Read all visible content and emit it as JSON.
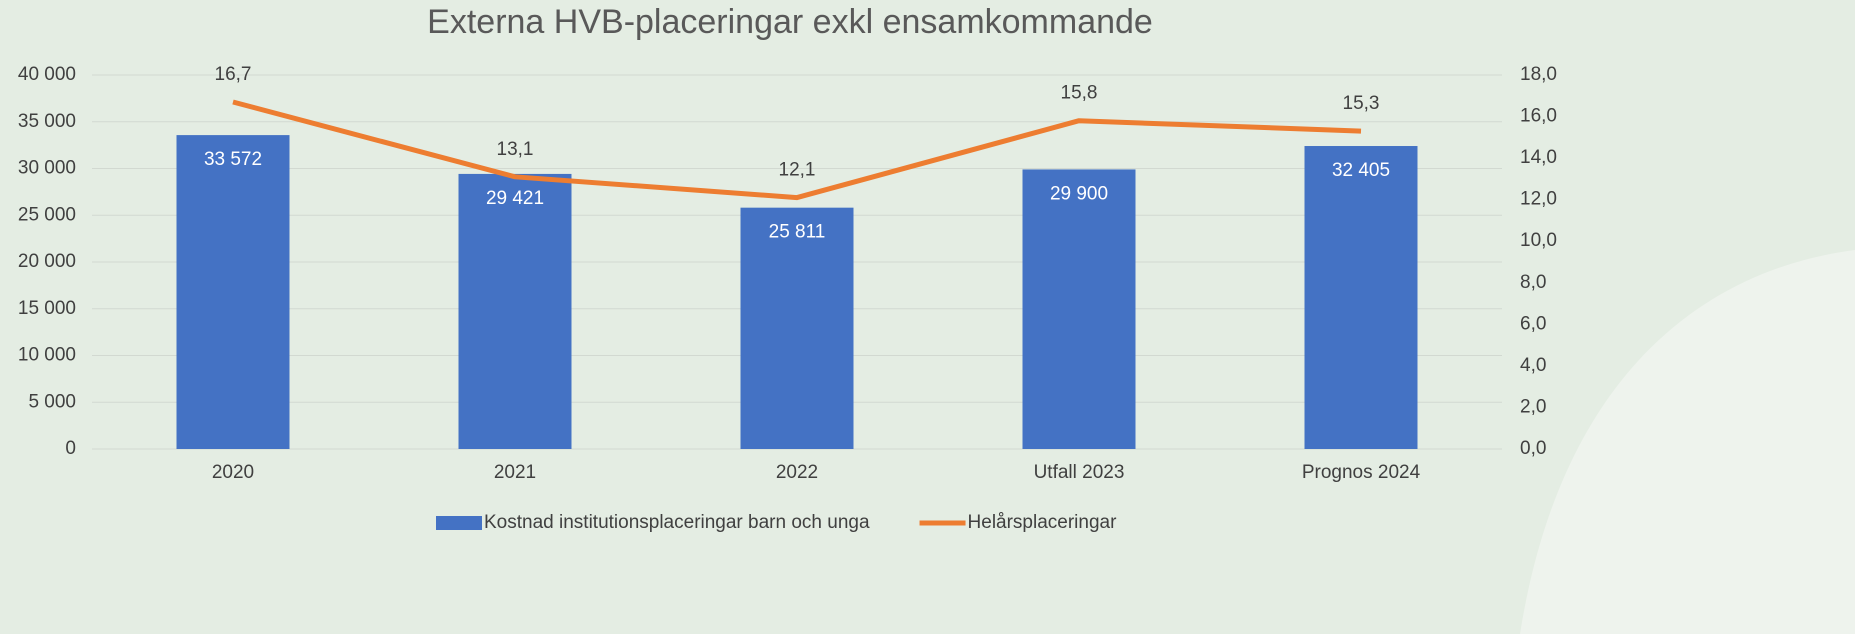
{
  "chart_data": {
    "type": "bar",
    "title": "Externa HVB-placeringar exkl ensamkommande",
    "categories": [
      "2020",
      "2021",
      "2022",
      "Utfall 2023",
      "Prognos 2024"
    ],
    "series": [
      {
        "name": "Kostnad institutionsplaceringar barn och unga",
        "type": "bar",
        "color": "#4472c4",
        "values": [
          33572,
          29421,
          25811,
          29900,
          32405
        ],
        "value_labels": [
          "33 572",
          "29 421",
          "25 811",
          "29 900",
          "32 405"
        ]
      },
      {
        "name": "Helårsplaceringar",
        "type": "line",
        "axis": "y2",
        "color": "#ed7d31",
        "values": [
          16.7,
          13.1,
          12.1,
          15.8,
          15.3
        ],
        "value_labels": [
          "16,7",
          "13,1",
          "12,1",
          "15,8",
          "15,3"
        ]
      }
    ],
    "ylim": [
      0,
      40000
    ],
    "yticks": [
      {
        "value": 0,
        "label": "0"
      },
      {
        "value": 5000,
        "label": "5 000"
      },
      {
        "value": 10000,
        "label": "10 000"
      },
      {
        "value": 15000,
        "label": "15 000"
      },
      {
        "value": 20000,
        "label": "20 000"
      },
      {
        "value": 25000,
        "label": "25 000"
      },
      {
        "value": 30000,
        "label": "30 000"
      },
      {
        "value": 35000,
        "label": "35 000"
      },
      {
        "value": 40000,
        "label": "40 000"
      }
    ],
    "y2lim": [
      0,
      18
    ],
    "y2ticks": [
      {
        "value": 0,
        "label": "0,0"
      },
      {
        "value": 2,
        "label": "2,0"
      },
      {
        "value": 4,
        "label": "4,0"
      },
      {
        "value": 6,
        "label": "6,0"
      },
      {
        "value": 8,
        "label": "8,0"
      },
      {
        "value": 10,
        "label": "10,0"
      },
      {
        "value": 12,
        "label": "12,0"
      },
      {
        "value": 14,
        "label": "14,0"
      },
      {
        "value": 16,
        "label": "16,0"
      },
      {
        "value": 18,
        "label": "18,0"
      }
    ],
    "grid": true,
    "legend": "bottom"
  }
}
